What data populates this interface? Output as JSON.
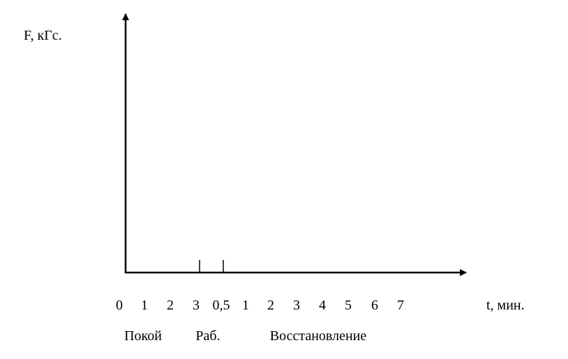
{
  "y_axis": {
    "label": "F, кГс."
  },
  "x_axis": {
    "label": "t, мин.",
    "tick_labels": [
      "0",
      "1",
      "2",
      "3",
      "0,5",
      "1",
      "2",
      "3",
      "4",
      "5",
      "6",
      "7"
    ]
  },
  "phases": [
    "Покой",
    "Раб.",
    "Восстановление"
  ]
}
